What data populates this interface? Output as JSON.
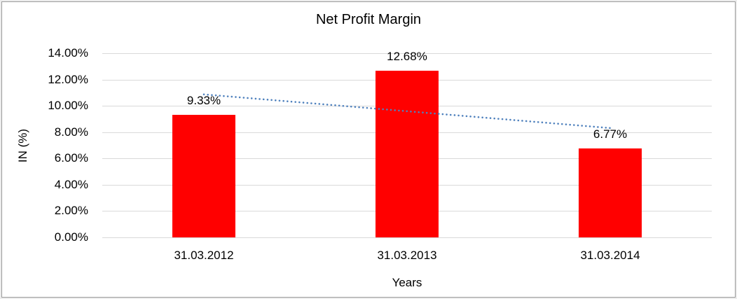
{
  "frame": {
    "outer_border_color": "#ececec",
    "inner_border_color": "#9b9b9b",
    "background": "#ffffff"
  },
  "chart_data": {
    "type": "bar",
    "title": "Net Profit Margin",
    "xlabel": "Years",
    "ylabel": "IN (%)",
    "categories": [
      "31.03.2012",
      "31.03.2013",
      "31.03.2014"
    ],
    "values": [
      9.33,
      12.68,
      6.77
    ],
    "data_labels": [
      "9.33%",
      "12.68%",
      "6.77%"
    ],
    "ylim": [
      0,
      14
    ],
    "yticks": [
      {
        "value": 0,
        "label": "0.00%"
      },
      {
        "value": 2,
        "label": "2.00%"
      },
      {
        "value": 4,
        "label": "4.00%"
      },
      {
        "value": 6,
        "label": "6.00%"
      },
      {
        "value": 8,
        "label": "8.00%"
      },
      {
        "value": 10,
        "label": "10.00%"
      },
      {
        "value": 12,
        "label": "12.00%"
      },
      {
        "value": 14,
        "label": "14.00%"
      }
    ],
    "grid": true,
    "legend": false,
    "bar_color": "#ff0000",
    "gridline_color": "#d9d9d9",
    "text_color": "#000000",
    "trendline": {
      "type": "linear",
      "style": "dotted",
      "color": "#4f81bd",
      "points": [
        {
          "category": "31.03.2012",
          "value": 10.87
        },
        {
          "category": "31.03.2014",
          "value": 8.31
        }
      ]
    }
  }
}
